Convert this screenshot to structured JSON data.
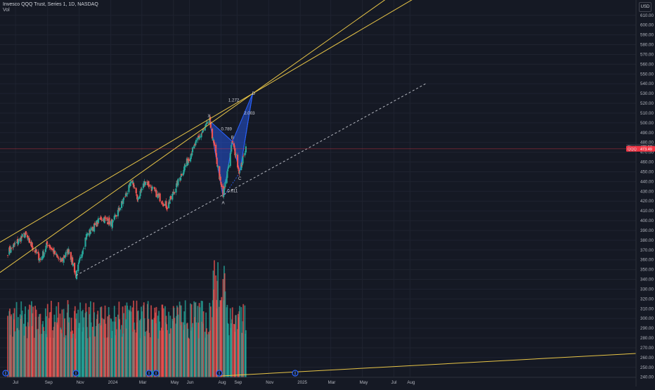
{
  "header": {
    "title": "Invesco QQQ Trust, Series 1, 1D, NASDAQ",
    "volume_label": "Vol"
  },
  "currency": "USD",
  "price_labels": [
    {
      "text": "Pivot",
      "value": "475.57",
      "color": "#2a2e39"
    },
    {
      "text": "QQQ",
      "value": "473.49",
      "color": "#f23645"
    }
  ],
  "colors": {
    "background": "#151924",
    "grid": "#1f2330",
    "up": "#26a69a",
    "down": "#ef5350",
    "trendline": "#e8c547",
    "pattern": "#2962ff",
    "dashed": "#d1d4dc"
  },
  "pattern_labels": {
    "x": "X",
    "a": "A",
    "b": "B",
    "c": "C",
    "d": "D",
    "xab": "0.789",
    "abc": "0.611",
    "bcd": "2.003",
    "xad": "1.272"
  },
  "chart_data": {
    "type": "candlestick",
    "title": "Invesco QQQ Trust, Series 1, 1D, NASDAQ",
    "y_axis": {
      "unit": "USD",
      "ticks": [
        "240.00",
        "250.00",
        "260.00",
        "270.00",
        "280.00",
        "290.00",
        "300.00",
        "310.00",
        "320.00",
        "330.00",
        "340.00",
        "350.00",
        "360.00",
        "370.00",
        "380.00",
        "390.00",
        "400.00",
        "410.00",
        "420.00",
        "430.00",
        "440.00",
        "450.00",
        "460.00",
        "470.00",
        "480.00",
        "490.00",
        "500.00",
        "510.00",
        "520.00",
        "530.00",
        "540.00",
        "550.00",
        "560.00",
        "570.00",
        "580.00",
        "590.00",
        "600.00",
        "610.00"
      ]
    },
    "x_axis": {
      "ticks": [
        "Jul",
        "Sep",
        "Nov",
        "2024",
        "Mar",
        "May",
        "Jun",
        "Aug",
        "Sep",
        "Nov",
        "2025",
        "Mar",
        "May",
        "Jul",
        "Aug"
      ]
    },
    "series": [
      {
        "name": "Invesco QQQ Trust",
        "waypoints": [
          {
            "date": "2023-06-16",
            "close": 368
          },
          {
            "date": "2023-07-19",
            "close": 386
          },
          {
            "date": "2023-08-18",
            "close": 360
          },
          {
            "date": "2023-09-01",
            "close": 377
          },
          {
            "date": "2023-09-26",
            "close": 358
          },
          {
            "date": "2023-10-12",
            "close": 370
          },
          {
            "date": "2023-10-26",
            "close": 344
          },
          {
            "date": "2023-11-14",
            "close": 384
          },
          {
            "date": "2023-12-14",
            "close": 403
          },
          {
            "date": "2024-01-04",
            "close": 397
          },
          {
            "date": "2024-02-12",
            "close": 441
          },
          {
            "date": "2024-02-21",
            "close": 422
          },
          {
            "date": "2024-03-08",
            "close": 441
          },
          {
            "date": "2024-04-19",
            "close": 414
          },
          {
            "date": "2024-05-24",
            "close": 457
          },
          {
            "date": "2024-06-20",
            "close": 486
          },
          {
            "date": "2024-07-10",
            "close": 502
          },
          {
            "date": "2024-08-05",
            "close": 424
          },
          {
            "date": "2024-08-23",
            "close": 481
          },
          {
            "date": "2024-09-06",
            "close": 449
          },
          {
            "date": "2024-09-18",
            "close": 476
          }
        ]
      }
    ],
    "volume_series": {
      "name": "Vol",
      "description": "daily volume bars colored by candle direction"
    },
    "harmonic_pattern": {
      "points": [
        {
          "label": "X",
          "date": "2024-07-10",
          "price": 502
        },
        {
          "label": "A",
          "date": "2024-08-05",
          "price": 424
        },
        {
          "label": "B",
          "date": "2024-08-23",
          "price": 481
        },
        {
          "label": "C",
          "date": "2024-09-06",
          "price": 449
        },
        {
          "label": "D",
          "date": "2024-10-01",
          "price": 530
        }
      ],
      "ratios": {
        "XAB": 0.789,
        "ABC": 0.611,
        "BCD": 2.003,
        "XAD": 1.272
      }
    },
    "trendlines": [
      {
        "style": "solid",
        "from": {
          "date": "2023-06-01",
          "price": 378
        },
        "to": {
          "date": "2024-10-01",
          "price": 530
        }
      },
      {
        "style": "solid",
        "from": {
          "date": "2023-06-01",
          "price": 347
        },
        "to": {
          "date": "2024-10-01",
          "price": 530
        }
      },
      {
        "style": "dashed",
        "from": {
          "date": "2023-10-26",
          "price": 344
        },
        "to": {
          "date": "2025-08-31",
          "price": 540
        }
      }
    ]
  }
}
